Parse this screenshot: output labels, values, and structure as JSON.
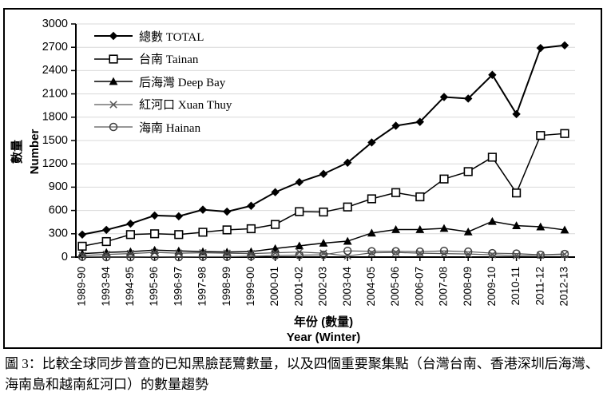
{
  "figure": {
    "caption": "圖 3：比較全球同步普查的已知黑臉琵鷺數量，以及四個重要聚集點（台灣台南、香港深圳后海灣、海南島和越南紅河口）的數量趨勢"
  },
  "chart_data": {
    "type": "line",
    "title": "",
    "xlabel_zh": "年份 (數量)",
    "xlabel_en": "Year (Winter)",
    "ylabel_zh": "數量",
    "ylabel_en": "Number",
    "ylim": [
      0,
      3000
    ],
    "yticks": [
      0,
      300,
      600,
      900,
      1200,
      1500,
      1800,
      2100,
      2400,
      2700,
      3000
    ],
    "grid": "horizontal-light-gray",
    "legend_position": "top-left-inside",
    "colors": {
      "axis": "#000000",
      "gridline": "#d9d9d9",
      "gray_series": "#595959"
    },
    "categories": [
      "1989-90",
      "1993-94",
      "1994-95",
      "1995-96",
      "1996-97",
      "1997-98",
      "1998-99",
      "1999-00",
      "2000-01",
      "2001-02",
      "2002-03",
      "2003-04",
      "2004-05",
      "2005-06",
      "2006-07",
      "2007-08",
      "2008-09",
      "2009-10",
      "2010-11",
      "2011-12",
      "2012-13"
    ],
    "series": [
      {
        "name": "總數 TOTAL",
        "marker": "diamond-filled",
        "color": "#000000",
        "line_width": 2,
        "values": [
          290,
          350,
          430,
          535,
          525,
          610,
          585,
          660,
          835,
          965,
          1070,
          1215,
          1475,
          1690,
          1740,
          2060,
          2040,
          2345,
          1840,
          2690,
          2725
        ]
      },
      {
        "name": "台南 Tainan",
        "marker": "square-open",
        "color": "#000000",
        "line_width": 1.5,
        "values": [
          140,
          200,
          290,
          300,
          290,
          320,
          350,
          365,
          420,
          585,
          580,
          645,
          750,
          830,
          775,
          1005,
          1100,
          1285,
          825,
          1565,
          1590
        ]
      },
      {
        "name": "后海灣 Deep Bay",
        "marker": "triangle-filled",
        "color": "#000000",
        "line_width": 1.5,
        "values": [
          45,
          60,
          70,
          90,
          80,
          70,
          65,
          70,
          110,
          145,
          180,
          205,
          310,
          355,
          355,
          370,
          325,
          460,
          405,
          390,
          350
        ]
      },
      {
        "name": "紅河口 Xuan Thuy",
        "marker": "x-cross",
        "color": "#595959",
        "line_width": 1.2,
        "values": [
          20,
          35,
          45,
          60,
          50,
          55,
          50,
          45,
          55,
          65,
          50,
          15,
          55,
          60,
          50,
          45,
          40,
          30,
          20,
          25,
          35
        ]
      },
      {
        "name": "海南 Hainan",
        "marker": "circle-open",
        "color": "#595959",
        "line_width": 1.2,
        "values": [
          5,
          0,
          0,
          5,
          0,
          5,
          5,
          10,
          20,
          25,
          30,
          80,
          75,
          75,
          70,
          80,
          70,
          50,
          45,
          30,
          40
        ]
      }
    ]
  }
}
